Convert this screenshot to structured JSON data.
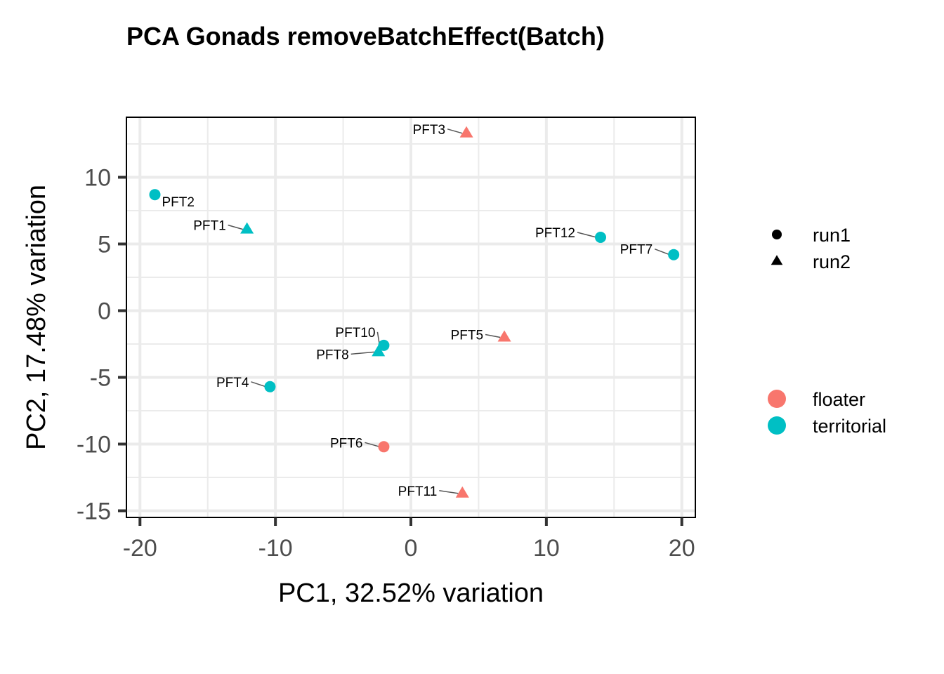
{
  "chart_data": {
    "type": "scatter",
    "title": "PCA Gonads removeBatchEffect(Batch)",
    "xlabel": "PC1, 32.52% variation",
    "ylabel": "PC2, 17.48% variation",
    "xlim": [
      -21,
      21
    ],
    "ylim": [
      -15.5,
      14.5
    ],
    "x_ticks": [
      -20,
      -10,
      0,
      10,
      20
    ],
    "x_tick_labels": [
      "-20",
      "-10",
      "0",
      "10",
      "20"
    ],
    "y_ticks": [
      -15,
      -10,
      -5,
      0,
      5,
      10
    ],
    "y_tick_labels": [
      "-15",
      "-10",
      "-5",
      "0",
      "5",
      "10"
    ],
    "grid": true,
    "colors": {
      "floater": "#F8766D",
      "territorial": "#00BFC4"
    },
    "legend": {
      "placement": "right",
      "shape_entries": [
        {
          "label": "run1",
          "shape": "circle"
        },
        {
          "label": "run2",
          "shape": "triangle"
        }
      ],
      "color_entries": [
        {
          "label": "floater",
          "group": "floater"
        },
        {
          "label": "territorial",
          "group": "territorial"
        }
      ]
    },
    "points": [
      {
        "label": "PFT1",
        "x": -12.1,
        "y": 6.1,
        "group": "territorial",
        "batch": "run2"
      },
      {
        "label": "PFT2",
        "x": -18.9,
        "y": 8.7,
        "group": "territorial",
        "batch": "run1"
      },
      {
        "label": "PFT3",
        "x": 4.1,
        "y": 13.3,
        "group": "floater",
        "batch": "run2"
      },
      {
        "label": "PFT4",
        "x": -10.4,
        "y": -5.7,
        "group": "territorial",
        "batch": "run1"
      },
      {
        "label": "PFT5",
        "x": 6.9,
        "y": -2.0,
        "group": "floater",
        "batch": "run2"
      },
      {
        "label": "PFT6",
        "x": -2.0,
        "y": -10.2,
        "group": "floater",
        "batch": "run1"
      },
      {
        "label": "PFT7",
        "x": 19.4,
        "y": 4.2,
        "group": "territorial",
        "batch": "run1"
      },
      {
        "label": "PFT8",
        "x": -2.4,
        "y": -3.1,
        "group": "territorial",
        "batch": "run2"
      },
      {
        "label": "PFT10",
        "x": -2.0,
        "y": -2.6,
        "group": "territorial",
        "batch": "run1"
      },
      {
        "label": "PFT11",
        "x": 3.8,
        "y": -13.7,
        "group": "floater",
        "batch": "run2"
      },
      {
        "label": "PFT12",
        "x": 14.0,
        "y": 5.5,
        "group": "territorial",
        "batch": "run1"
      }
    ]
  }
}
